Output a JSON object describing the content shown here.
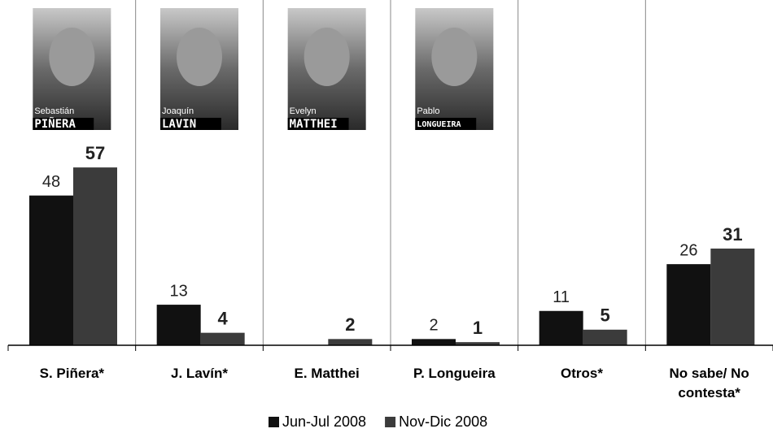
{
  "chart_data": {
    "type": "bar",
    "categories": [
      "S. Piñera*",
      "J. Lavín*",
      "E. Matthei",
      "P. Longueira",
      "Otros*",
      "No sabe/ No contesta*"
    ],
    "series": [
      {
        "name": "Jun-Jul 2008",
        "color": "#111111",
        "values": [
          48,
          13,
          null,
          2,
          11,
          26
        ]
      },
      {
        "name": "Nov-Dic 2008",
        "color": "#3b3b3b",
        "values": [
          57,
          4,
          2,
          1,
          5,
          31
        ]
      }
    ],
    "annotations": [
      {
        "first": "Sebastián",
        "last": "PIÑERA"
      },
      {
        "first": "Joaquín",
        "last": "LAVIN"
      },
      {
        "first": "Evelyn",
        "last": "MATTHEI"
      },
      {
        "first": "Pablo",
        "last": "LONGUEIRA"
      }
    ]
  }
}
